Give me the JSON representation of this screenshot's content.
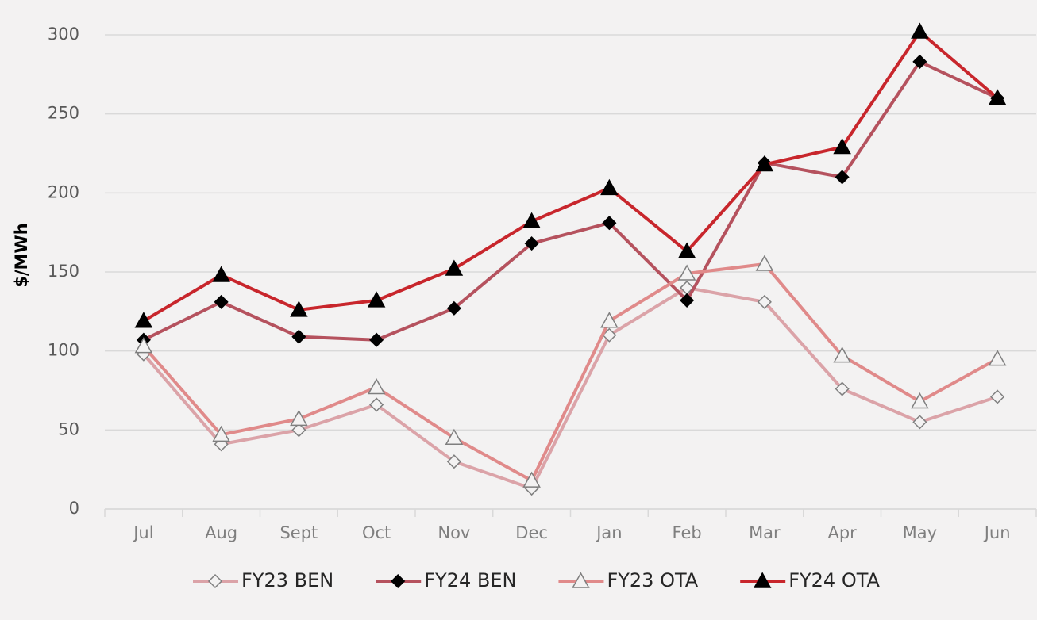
{
  "chart_data": {
    "type": "line",
    "y_label": "$/MWh",
    "categories": [
      "Jul",
      "Aug",
      "Sept",
      "Oct",
      "Nov",
      "Dec",
      "Jan",
      "Feb",
      "Mar",
      "Apr",
      "May",
      "Jun"
    ],
    "series": [
      {
        "name": "FY23 BEN",
        "color": "#dba3a8",
        "marker": "open-diamond",
        "values": [
          98,
          41,
          50,
          66,
          30,
          13,
          110,
          140,
          131,
          76,
          55,
          71
        ]
      },
      {
        "name": "FY24 BEN",
        "color": "#b5525e",
        "marker": "filled-diamond",
        "values": [
          107,
          131,
          109,
          107,
          127,
          168,
          181,
          132,
          219,
          210,
          283,
          260
        ]
      },
      {
        "name": "FY23 OTA",
        "color": "#e08a8a",
        "marker": "open-triangle",
        "values": [
          103,
          47,
          57,
          77,
          45,
          18,
          119,
          149,
          155,
          97,
          68,
          95
        ]
      },
      {
        "name": "FY24 OTA",
        "color": "#c8262c",
        "marker": "filled-triangle",
        "values": [
          119,
          148,
          126,
          132,
          152,
          182,
          203,
          163,
          218,
          229,
          302,
          260
        ]
      }
    ],
    "ylim": [
      0,
      300
    ],
    "yticks": [
      0,
      50,
      100,
      150,
      200,
      250,
      300
    ],
    "grid": true,
    "legend": "bottom"
  }
}
